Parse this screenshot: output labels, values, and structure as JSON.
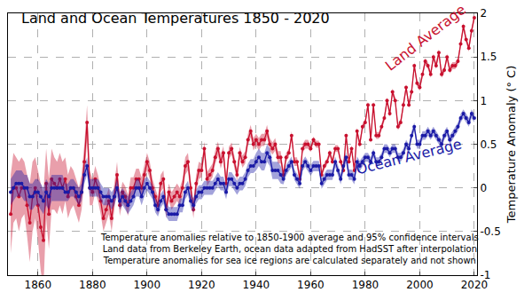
{
  "chart_data": {
    "type": "line",
    "title": "Land and Ocean Temperatures 1850 - 2020",
    "y_label": "Temperature Anomaly (° C)",
    "notes": [
      "Temperature anomalies relative to 1850-1900 average and 95% confidence intervals",
      "Land data from Berkeley Earth, ocean data adapted from HadSST after interpolation",
      "Temperature anomalies for sea ice regions are calculated separately and not shown"
    ],
    "x": [
      1850,
      1851,
      1852,
      1853,
      1854,
      1855,
      1856,
      1857,
      1858,
      1859,
      1860,
      1861,
      1862,
      1863,
      1864,
      1865,
      1866,
      1867,
      1868,
      1869,
      1870,
      1871,
      1872,
      1873,
      1874,
      1875,
      1876,
      1877,
      1878,
      1879,
      1880,
      1881,
      1882,
      1883,
      1884,
      1885,
      1886,
      1887,
      1888,
      1889,
      1890,
      1891,
      1892,
      1893,
      1894,
      1895,
      1896,
      1897,
      1898,
      1899,
      1900,
      1901,
      1902,
      1903,
      1904,
      1905,
      1906,
      1907,
      1908,
      1909,
      1910,
      1911,
      1912,
      1913,
      1914,
      1915,
      1916,
      1917,
      1918,
      1919,
      1920,
      1921,
      1922,
      1923,
      1924,
      1925,
      1926,
      1927,
      1928,
      1929,
      1930,
      1931,
      1932,
      1933,
      1934,
      1935,
      1936,
      1937,
      1938,
      1939,
      1940,
      1941,
      1942,
      1943,
      1944,
      1945,
      1946,
      1947,
      1948,
      1949,
      1950,
      1951,
      1952,
      1953,
      1954,
      1955,
      1956,
      1957,
      1958,
      1959,
      1960,
      1961,
      1962,
      1963,
      1964,
      1965,
      1966,
      1967,
      1968,
      1969,
      1970,
      1971,
      1972,
      1973,
      1974,
      1975,
      1976,
      1977,
      1978,
      1979,
      1980,
      1981,
      1982,
      1983,
      1984,
      1985,
      1986,
      1987,
      1988,
      1989,
      1990,
      1991,
      1992,
      1993,
      1994,
      1995,
      1996,
      1997,
      1998,
      1999,
      2000,
      2001,
      2002,
      2003,
      2004,
      2005,
      2006,
      2007,
      2008,
      2009,
      2010,
      2011,
      2012,
      2013,
      2014,
      2015,
      2016,
      2017,
      2018,
      2019,
      2020
    ],
    "xlim": [
      1849,
      2021
    ],
    "xticks": [
      1860,
      1880,
      1900,
      1920,
      1940,
      1960,
      1980,
      2000,
      2020
    ],
    "ylim": [
      -1,
      2
    ],
    "yticks": [
      -1,
      -0.5,
      0,
      0.5,
      1,
      1.5,
      2
    ],
    "grid": true,
    "marker": "circle",
    "series": [
      {
        "name": "Land Average",
        "color": "#c8102e",
        "values": [
          -0.3,
          0.0,
          0.0,
          -0.1,
          0.0,
          0.0,
          -0.2,
          -0.4,
          -0.1,
          0.0,
          -0.2,
          -0.45,
          -0.6,
          0.05,
          -0.3,
          0.1,
          0.05,
          0.0,
          0.1,
          0.0,
          0.1,
          -0.1,
          0.0,
          0.0,
          -0.1,
          -0.2,
          -0.05,
          0.3,
          0.75,
          0.0,
          -0.05,
          0.1,
          0.0,
          -0.15,
          -0.35,
          -0.25,
          -0.15,
          -0.35,
          -0.1,
          0.15,
          -0.2,
          -0.05,
          -0.1,
          -0.2,
          0.0,
          0.0,
          0.1,
          0.1,
          0.0,
          0.15,
          0.3,
          0.2,
          0.0,
          -0.1,
          -0.2,
          0.05,
          0.1,
          -0.25,
          -0.05,
          -0.15,
          -0.1,
          -0.05,
          -0.1,
          0.0,
          0.25,
          0.3,
          0.0,
          -0.25,
          0.05,
          0.2,
          0.2,
          0.45,
          0.1,
          0.15,
          0.2,
          0.35,
          0.45,
          0.3,
          0.4,
          0.05,
          0.4,
          0.45,
          0.3,
          0.15,
          0.4,
          0.3,
          0.35,
          0.55,
          0.65,
          0.5,
          0.55,
          0.5,
          0.55,
          0.55,
          0.65,
          0.5,
          0.45,
          0.5,
          0.35,
          0.35,
          0.15,
          0.35,
          0.4,
          0.6,
          0.3,
          0.3,
          0.1,
          0.45,
          0.5,
          0.5,
          0.45,
          0.55,
          0.5,
          0.5,
          0.15,
          0.25,
          0.3,
          0.4,
          0.3,
          0.45,
          0.45,
          0.3,
          0.2,
          0.6,
          0.3,
          0.45,
          0.2,
          0.65,
          0.5,
          0.7,
          0.75,
          0.95,
          0.55,
          0.95,
          0.6,
          0.6,
          0.7,
          0.8,
          1.0,
          0.85,
          1.1,
          1.0,
          0.7,
          0.75,
          0.95,
          1.15,
          0.95,
          1.1,
          1.4,
          1.2,
          1.15,
          1.3,
          1.45,
          1.4,
          1.3,
          1.5,
          1.4,
          1.55,
          1.3,
          1.35,
          1.5,
          1.35,
          1.4,
          1.4,
          1.45,
          1.65,
          1.85,
          1.7,
          1.6,
          1.8,
          1.95
        ],
        "error": [
          0.45,
          0.4,
          0.35,
          0.4,
          0.35,
          0.3,
          0.35,
          0.45,
          0.4,
          0.35,
          0.4,
          0.5,
          0.55,
          0.4,
          0.4,
          0.35,
          0.3,
          0.3,
          0.3,
          0.3,
          0.25,
          0.25,
          0.25,
          0.2,
          0.2,
          0.2,
          0.2,
          0.2,
          0.2,
          0.2,
          0.15,
          0.15,
          0.15,
          0.15,
          0.15,
          0.15,
          0.15,
          0.15,
          0.15,
          0.15,
          0.12,
          0.12,
          0.12,
          0.12,
          0.12,
          0.12,
          0.12,
          0.12,
          0.12,
          0.12,
          0.1,
          0.1,
          0.1,
          0.1,
          0.1,
          0.1,
          0.1,
          0.1,
          0.1,
          0.1,
          0.1,
          0.1,
          0.1,
          0.1,
          0.1,
          0.1,
          0.1,
          0.1,
          0.1,
          0.1,
          0.08,
          0.08,
          0.08,
          0.08,
          0.08,
          0.08,
          0.08,
          0.08,
          0.08,
          0.08,
          0.07,
          0.07,
          0.07,
          0.07,
          0.07,
          0.07,
          0.07,
          0.07,
          0.07,
          0.07,
          0.07,
          0.07,
          0.07,
          0.07,
          0.07,
          0.07,
          0.07,
          0.07,
          0.07,
          0.07,
          0.05,
          0.05,
          0.05,
          0.05,
          0.05,
          0.05,
          0.05,
          0.05,
          0.05,
          0.05,
          0.04,
          0.04,
          0.04,
          0.04,
          0.04,
          0.04,
          0.04,
          0.04,
          0.04,
          0.04,
          0.04,
          0.04,
          0.04,
          0.04,
          0.04,
          0.04,
          0.04,
          0.04,
          0.04,
          0.04,
          0.04,
          0.04,
          0.04,
          0.04,
          0.04,
          0.04,
          0.04,
          0.04,
          0.04,
          0.04,
          0.04,
          0.04,
          0.04,
          0.04,
          0.04,
          0.04,
          0.04,
          0.04,
          0.04,
          0.04,
          0.04,
          0.04,
          0.04,
          0.04,
          0.04,
          0.04,
          0.04,
          0.04,
          0.04,
          0.04,
          0.04,
          0.04,
          0.04,
          0.04,
          0.04,
          0.04,
          0.04,
          0.04,
          0.04,
          0.04,
          0.04
        ]
      },
      {
        "name": "Ocean Average",
        "color": "#1a1aa6",
        "values": [
          -0.05,
          0.0,
          0.05,
          0.05,
          0.05,
          0.0,
          0.0,
          -0.1,
          -0.1,
          -0.05,
          -0.05,
          -0.1,
          -0.15,
          -0.05,
          -0.1,
          0.0,
          0.0,
          0.0,
          0.0,
          0.0,
          -0.05,
          -0.05,
          0.0,
          0.0,
          -0.05,
          -0.1,
          -0.05,
          0.15,
          0.25,
          0.0,
          0.0,
          0.0,
          0.0,
          -0.05,
          -0.1,
          -0.1,
          -0.1,
          -0.15,
          -0.1,
          0.0,
          -0.15,
          -0.1,
          -0.15,
          -0.2,
          -0.15,
          -0.1,
          0.0,
          0.0,
          -0.1,
          0.0,
          0.05,
          0.0,
          -0.05,
          -0.2,
          -0.25,
          -0.15,
          -0.1,
          -0.25,
          -0.3,
          -0.3,
          -0.3,
          -0.3,
          -0.2,
          -0.2,
          -0.05,
          0.0,
          -0.15,
          -0.2,
          -0.1,
          -0.05,
          -0.05,
          0.0,
          0.0,
          0.0,
          0.0,
          0.05,
          0.1,
          0.05,
          0.05,
          -0.05,
          0.1,
          0.1,
          0.05,
          0.0,
          0.05,
          0.05,
          0.1,
          0.2,
          0.25,
          0.25,
          0.3,
          0.35,
          0.3,
          0.3,
          0.4,
          0.35,
          0.2,
          0.2,
          0.2,
          0.15,
          0.1,
          0.2,
          0.25,
          0.3,
          0.15,
          0.1,
          0.05,
          0.25,
          0.3,
          0.25,
          0.2,
          0.25,
          0.25,
          0.25,
          0.05,
          0.1,
          0.15,
          0.15,
          0.15,
          0.3,
          0.2,
          0.1,
          0.25,
          0.35,
          0.15,
          0.15,
          0.1,
          0.3,
          0.25,
          0.3,
          0.35,
          0.35,
          0.3,
          0.4,
          0.3,
          0.3,
          0.35,
          0.45,
          0.45,
          0.4,
          0.45,
          0.45,
          0.35,
          0.35,
          0.4,
          0.5,
          0.45,
          0.6,
          0.7,
          0.5,
          0.5,
          0.6,
          0.6,
          0.65,
          0.6,
          0.65,
          0.6,
          0.55,
          0.5,
          0.6,
          0.65,
          0.55,
          0.6,
          0.65,
          0.7,
          0.8,
          0.85,
          0.8,
          0.75,
          0.85,
          0.8
        ],
        "error": [
          0.15,
          0.15,
          0.15,
          0.15,
          0.15,
          0.15,
          0.15,
          0.15,
          0.15,
          0.15,
          0.15,
          0.15,
          0.15,
          0.15,
          0.15,
          0.15,
          0.15,
          0.15,
          0.15,
          0.15,
          0.1,
          0.1,
          0.1,
          0.1,
          0.1,
          0.1,
          0.1,
          0.1,
          0.1,
          0.1,
          0.1,
          0.1,
          0.1,
          0.1,
          0.1,
          0.1,
          0.1,
          0.1,
          0.1,
          0.1,
          0.1,
          0.1,
          0.1,
          0.1,
          0.1,
          0.1,
          0.1,
          0.1,
          0.1,
          0.1,
          0.08,
          0.08,
          0.08,
          0.08,
          0.08,
          0.08,
          0.08,
          0.08,
          0.08,
          0.08,
          0.08,
          0.08,
          0.08,
          0.08,
          0.08,
          0.08,
          0.08,
          0.08,
          0.08,
          0.08,
          0.08,
          0.08,
          0.08,
          0.08,
          0.08,
          0.08,
          0.08,
          0.08,
          0.08,
          0.08,
          0.08,
          0.08,
          0.08,
          0.08,
          0.08,
          0.08,
          0.08,
          0.08,
          0.08,
          0.08,
          0.1,
          0.1,
          0.1,
          0.1,
          0.1,
          0.1,
          0.1,
          0.1,
          0.1,
          0.1,
          0.06,
          0.06,
          0.06,
          0.06,
          0.06,
          0.06,
          0.06,
          0.06,
          0.06,
          0.06,
          0.06,
          0.06,
          0.06,
          0.06,
          0.06,
          0.06,
          0.06,
          0.06,
          0.06,
          0.06,
          0.06,
          0.06,
          0.06,
          0.06,
          0.06,
          0.06,
          0.06,
          0.06,
          0.06,
          0.06,
          0.05,
          0.05,
          0.05,
          0.05,
          0.05,
          0.05,
          0.05,
          0.05,
          0.05,
          0.05,
          0.05,
          0.05,
          0.05,
          0.05,
          0.05,
          0.05,
          0.05,
          0.05,
          0.05,
          0.05,
          0.05,
          0.05,
          0.05,
          0.05,
          0.05,
          0.05,
          0.05,
          0.05,
          0.05,
          0.05,
          0.05,
          0.05,
          0.05,
          0.05,
          0.05,
          0.05,
          0.05,
          0.05,
          0.05,
          0.05,
          0.05
        ]
      }
    ]
  }
}
